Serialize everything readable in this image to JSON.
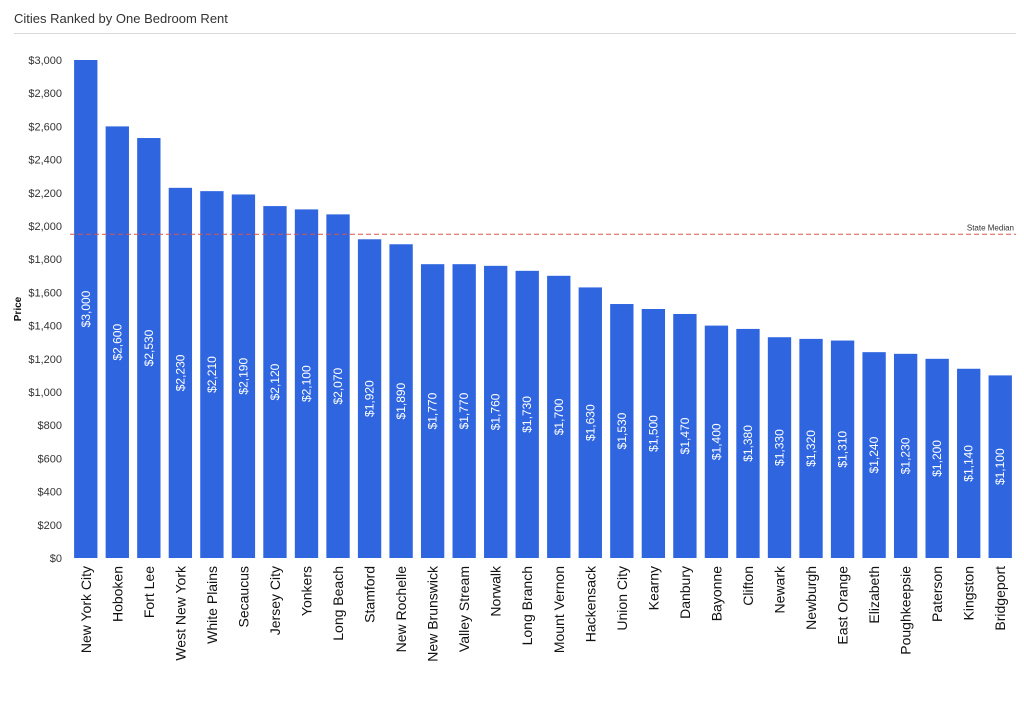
{
  "chart_data": {
    "type": "bar",
    "title": "Cities Ranked by One Bedroom Rent",
    "ylabel": "Price",
    "xlabel": "",
    "ylim": [
      0,
      3000
    ],
    "yticks": [
      0,
      200,
      400,
      600,
      800,
      1000,
      1200,
      1400,
      1600,
      1800,
      2000,
      2200,
      2400,
      2600,
      2800,
      3000
    ],
    "ytick_labels": [
      "$0",
      "$200",
      "$400",
      "$600",
      "$800",
      "$1,000",
      "$1,200",
      "$1,400",
      "$1,600",
      "$1,800",
      "$2,000",
      "$2,200",
      "$2,400",
      "$2,600",
      "$2,800",
      "$3,000"
    ],
    "categories": [
      "New York City",
      "Hoboken",
      "Fort Lee",
      "West New York",
      "White Plains",
      "Secaucus",
      "Jersey City",
      "Yonkers",
      "Long Beach",
      "Stamford",
      "New Rochelle",
      "New Brunswick",
      "Valley Stream",
      "Norwalk",
      "Long Branch",
      "Mount Vernon",
      "Hackensack",
      "Union City",
      "Kearny",
      "Danbury",
      "Bayonne",
      "Clifton",
      "Newark",
      "Newburgh",
      "East Orange",
      "Elizabeth",
      "Poughkeepsie",
      "Paterson",
      "Kingston",
      "Bridgeport"
    ],
    "values": [
      3000,
      2600,
      2530,
      2230,
      2210,
      2190,
      2120,
      2100,
      2070,
      1920,
      1890,
      1770,
      1770,
      1760,
      1730,
      1700,
      1630,
      1530,
      1500,
      1470,
      1400,
      1380,
      1330,
      1320,
      1310,
      1240,
      1230,
      1200,
      1140,
      1100
    ],
    "data_labels": [
      "$3,000",
      "$2,600",
      "$2,530",
      "$2,230",
      "$2,210",
      "$2,190",
      "$2,120",
      "$2,100",
      "$2,070",
      "$1,920",
      "$1,890",
      "$1,770",
      "$1,770",
      "$1,760",
      "$1,730",
      "$1,700",
      "$1,630",
      "$1,530",
      "$1,500",
      "$1,470",
      "$1,400",
      "$1,380",
      "$1,330",
      "$1,320",
      "$1,310",
      "$1,240",
      "$1,230",
      "$1,200",
      "$1,140",
      "$1,100"
    ],
    "reference_line": {
      "label": "State Median",
      "value": 1950,
      "color": "#d9534f",
      "style": "dashed"
    },
    "bar_color": "#2f66e0",
    "grid": false,
    "legend": "none"
  }
}
